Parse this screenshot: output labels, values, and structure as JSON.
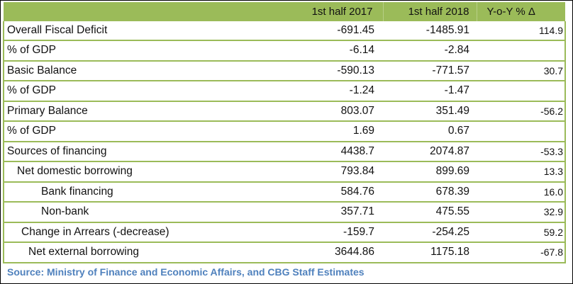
{
  "headers": [
    "",
    "1st half 2017",
    "1st half 2018",
    "Y-o-Y % Δ"
  ],
  "rows": [
    {
      "label": "Overall Fiscal Deficit",
      "h2017": "-691.45",
      "h2018": "-1485.91",
      "yoy": "114.9"
    },
    {
      "label": "% of GDP",
      "h2017": "-6.14",
      "h2018": "-2.84",
      "yoy": ""
    },
    {
      "label": "Basic Balance",
      "h2017": "-590.13",
      "h2018": "-771.57",
      "yoy": "30.7"
    },
    {
      "label": "% of GDP",
      "h2017": "-1.24",
      "h2018": "-1.47",
      "yoy": ""
    },
    {
      "label": "Primary Balance",
      "h2017": "803.07",
      "h2018": "351.49",
      "yoy": "-56.2"
    },
    {
      "label": "% of GDP",
      "h2017": "1.69",
      "h2018": "0.67",
      "yoy": ""
    },
    {
      "label": "Sources of financing",
      "h2017": "4438.7",
      "h2018": "2074.87",
      "yoy": "-53.3"
    },
    {
      "label": "Net domestic borrowing",
      "h2017": "793.84",
      "h2018": "899.69",
      "yoy": "13.3"
    },
    {
      "label": "Bank financing",
      "h2017": "584.76",
      "h2018": "678.39",
      "yoy": "16.0"
    },
    {
      "label": "Non-bank",
      "h2017": "357.71",
      "h2018": "475.55",
      "yoy": "32.9"
    },
    {
      "label": "Change in Arrears (-decrease)",
      "h2017": "-159.7",
      "h2018": "-254.25",
      "yoy": "59.2"
    },
    {
      "label": "Net external borrowing",
      "h2017": "3644.86",
      "h2018": "1175.18",
      "yoy": "-67.8"
    }
  ],
  "source": "Source: Ministry of Finance and Economic Affairs, and CBG Staff Estimates",
  "colors": {
    "header_bg": "#9bbb59",
    "source_text": "#4f81bd"
  }
}
